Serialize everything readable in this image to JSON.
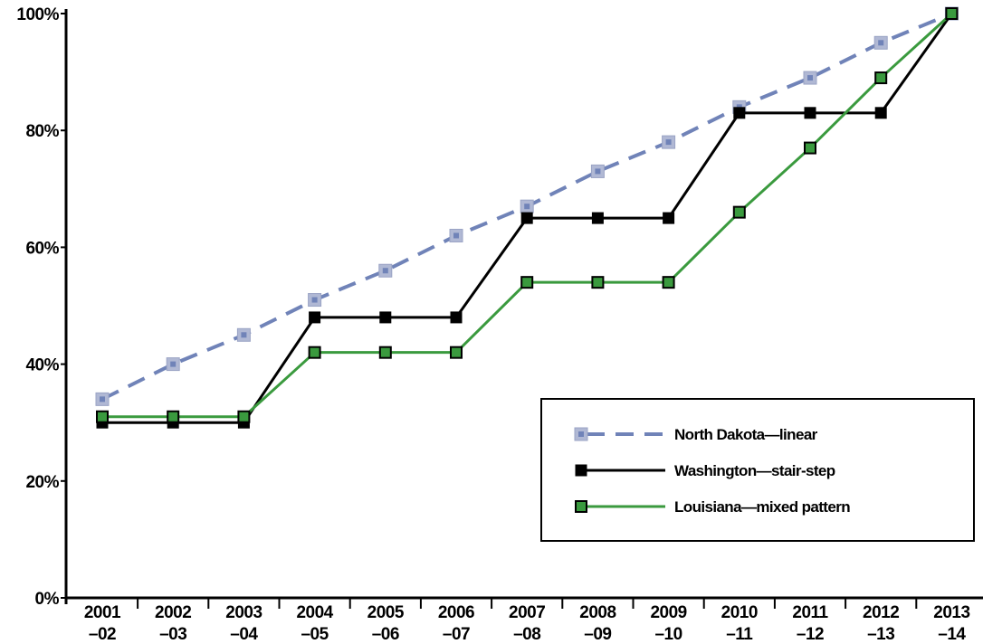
{
  "chart_data": {
    "type": "line",
    "title": "",
    "xlabel": "",
    "ylabel": "",
    "categories": [
      "2001\n–02",
      "2002\n–03",
      "2003\n–04",
      "2004\n–05",
      "2005\n–06",
      "2006\n–07",
      "2007\n–08",
      "2008\n–09",
      "2009\n–10",
      "2010\n–11",
      "2011\n–12",
      "2012\n–13",
      "2013\n–14"
    ],
    "ylim": [
      0,
      100
    ],
    "yticks": [
      0,
      20,
      40,
      60,
      80,
      100
    ],
    "ytick_labels": [
      "0%",
      "20%",
      "40%",
      "60%",
      "80%",
      "100%"
    ],
    "grid": false,
    "legend_position": "bottom-right",
    "series": [
      {
        "name": "North Dakota—linear",
        "style": "dashed",
        "color": "#7083B8",
        "marker_color": "#B0B8D4",
        "values": [
          34,
          40,
          45,
          51,
          56,
          62,
          67,
          73,
          78,
          84,
          89,
          95,
          100
        ]
      },
      {
        "name": "Washington—stair-step",
        "style": "solid",
        "color": "#000000",
        "marker_color": "#000000",
        "values": [
          30,
          30,
          30,
          48,
          48,
          48,
          65,
          65,
          65,
          83,
          83,
          83,
          100
        ]
      },
      {
        "name": "Louisiana—mixed pattern",
        "style": "solid",
        "color": "#3A9A3E",
        "marker_color": "#3A9A3E",
        "values": [
          31,
          31,
          31,
          42,
          42,
          42,
          54,
          54,
          54,
          66,
          77,
          89,
          100
        ]
      }
    ]
  }
}
